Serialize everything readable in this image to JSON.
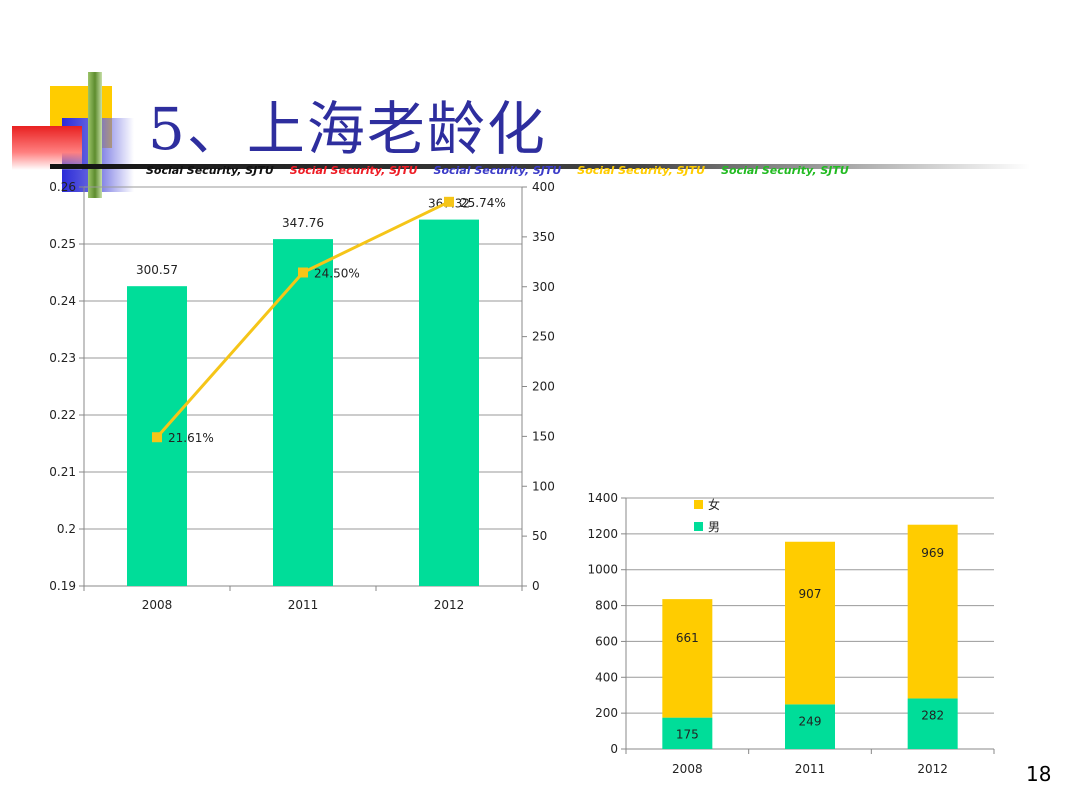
{
  "slide": {
    "title": "5、上海老龄化",
    "banner": [
      {
        "text": "Social Security, SJTU",
        "color": "#111111"
      },
      {
        "text": "Social Security, SJTU",
        "color": "#ee1c25"
      },
      {
        "text": "Social Security, SJTU",
        "color": "#3b3bc8"
      },
      {
        "text": "Social Security, SJTU",
        "color": "#ffcc00"
      },
      {
        "text": "Social Security, SJTU",
        "color": "#22bb22"
      }
    ],
    "page_number": "18"
  },
  "chart_data": [
    {
      "type": "bar",
      "categories": [
        "2008",
        "2011",
        "2012"
      ],
      "series": [
        {
          "kind": "bar",
          "axis": "right",
          "values": [
            300.57,
            347.76,
            367.32
          ],
          "labels": [
            "300.57",
            "347.76",
            "367.32"
          ],
          "color": "#00dd99"
        },
        {
          "kind": "line",
          "axis": "left",
          "values": [
            0.2161,
            0.245,
            0.2574
          ],
          "labels": [
            "21.61%",
            "24.50%",
            "25.74%"
          ],
          "color": "#f5c518"
        }
      ],
      "y_left": {
        "min": 0.19,
        "max": 0.26,
        "step": 0.01,
        "ticks": [
          "0.19",
          "0.2",
          "0.21",
          "0.22",
          "0.23",
          "0.24",
          "0.25",
          "0.26"
        ]
      },
      "y_right": {
        "min": 0,
        "max": 400,
        "step": 50,
        "ticks": [
          "0",
          "50",
          "100",
          "150",
          "200",
          "250",
          "300",
          "350",
          "400"
        ]
      },
      "grid": true
    },
    {
      "type": "bar",
      "stacked": true,
      "categories": [
        "2008",
        "2011",
        "2012"
      ],
      "series": [
        {
          "name": "男",
          "values": [
            175,
            249,
            282
          ],
          "color": "#00dd99"
        },
        {
          "name": "女",
          "values": [
            661,
            907,
            969
          ],
          "color": "#ffcc00"
        }
      ],
      "ylim": [
        0,
        1400
      ],
      "ticks": [
        "0",
        "200",
        "400",
        "600",
        "800",
        "1000",
        "1200",
        "1400"
      ],
      "legend": "top-left",
      "grid": true
    }
  ]
}
